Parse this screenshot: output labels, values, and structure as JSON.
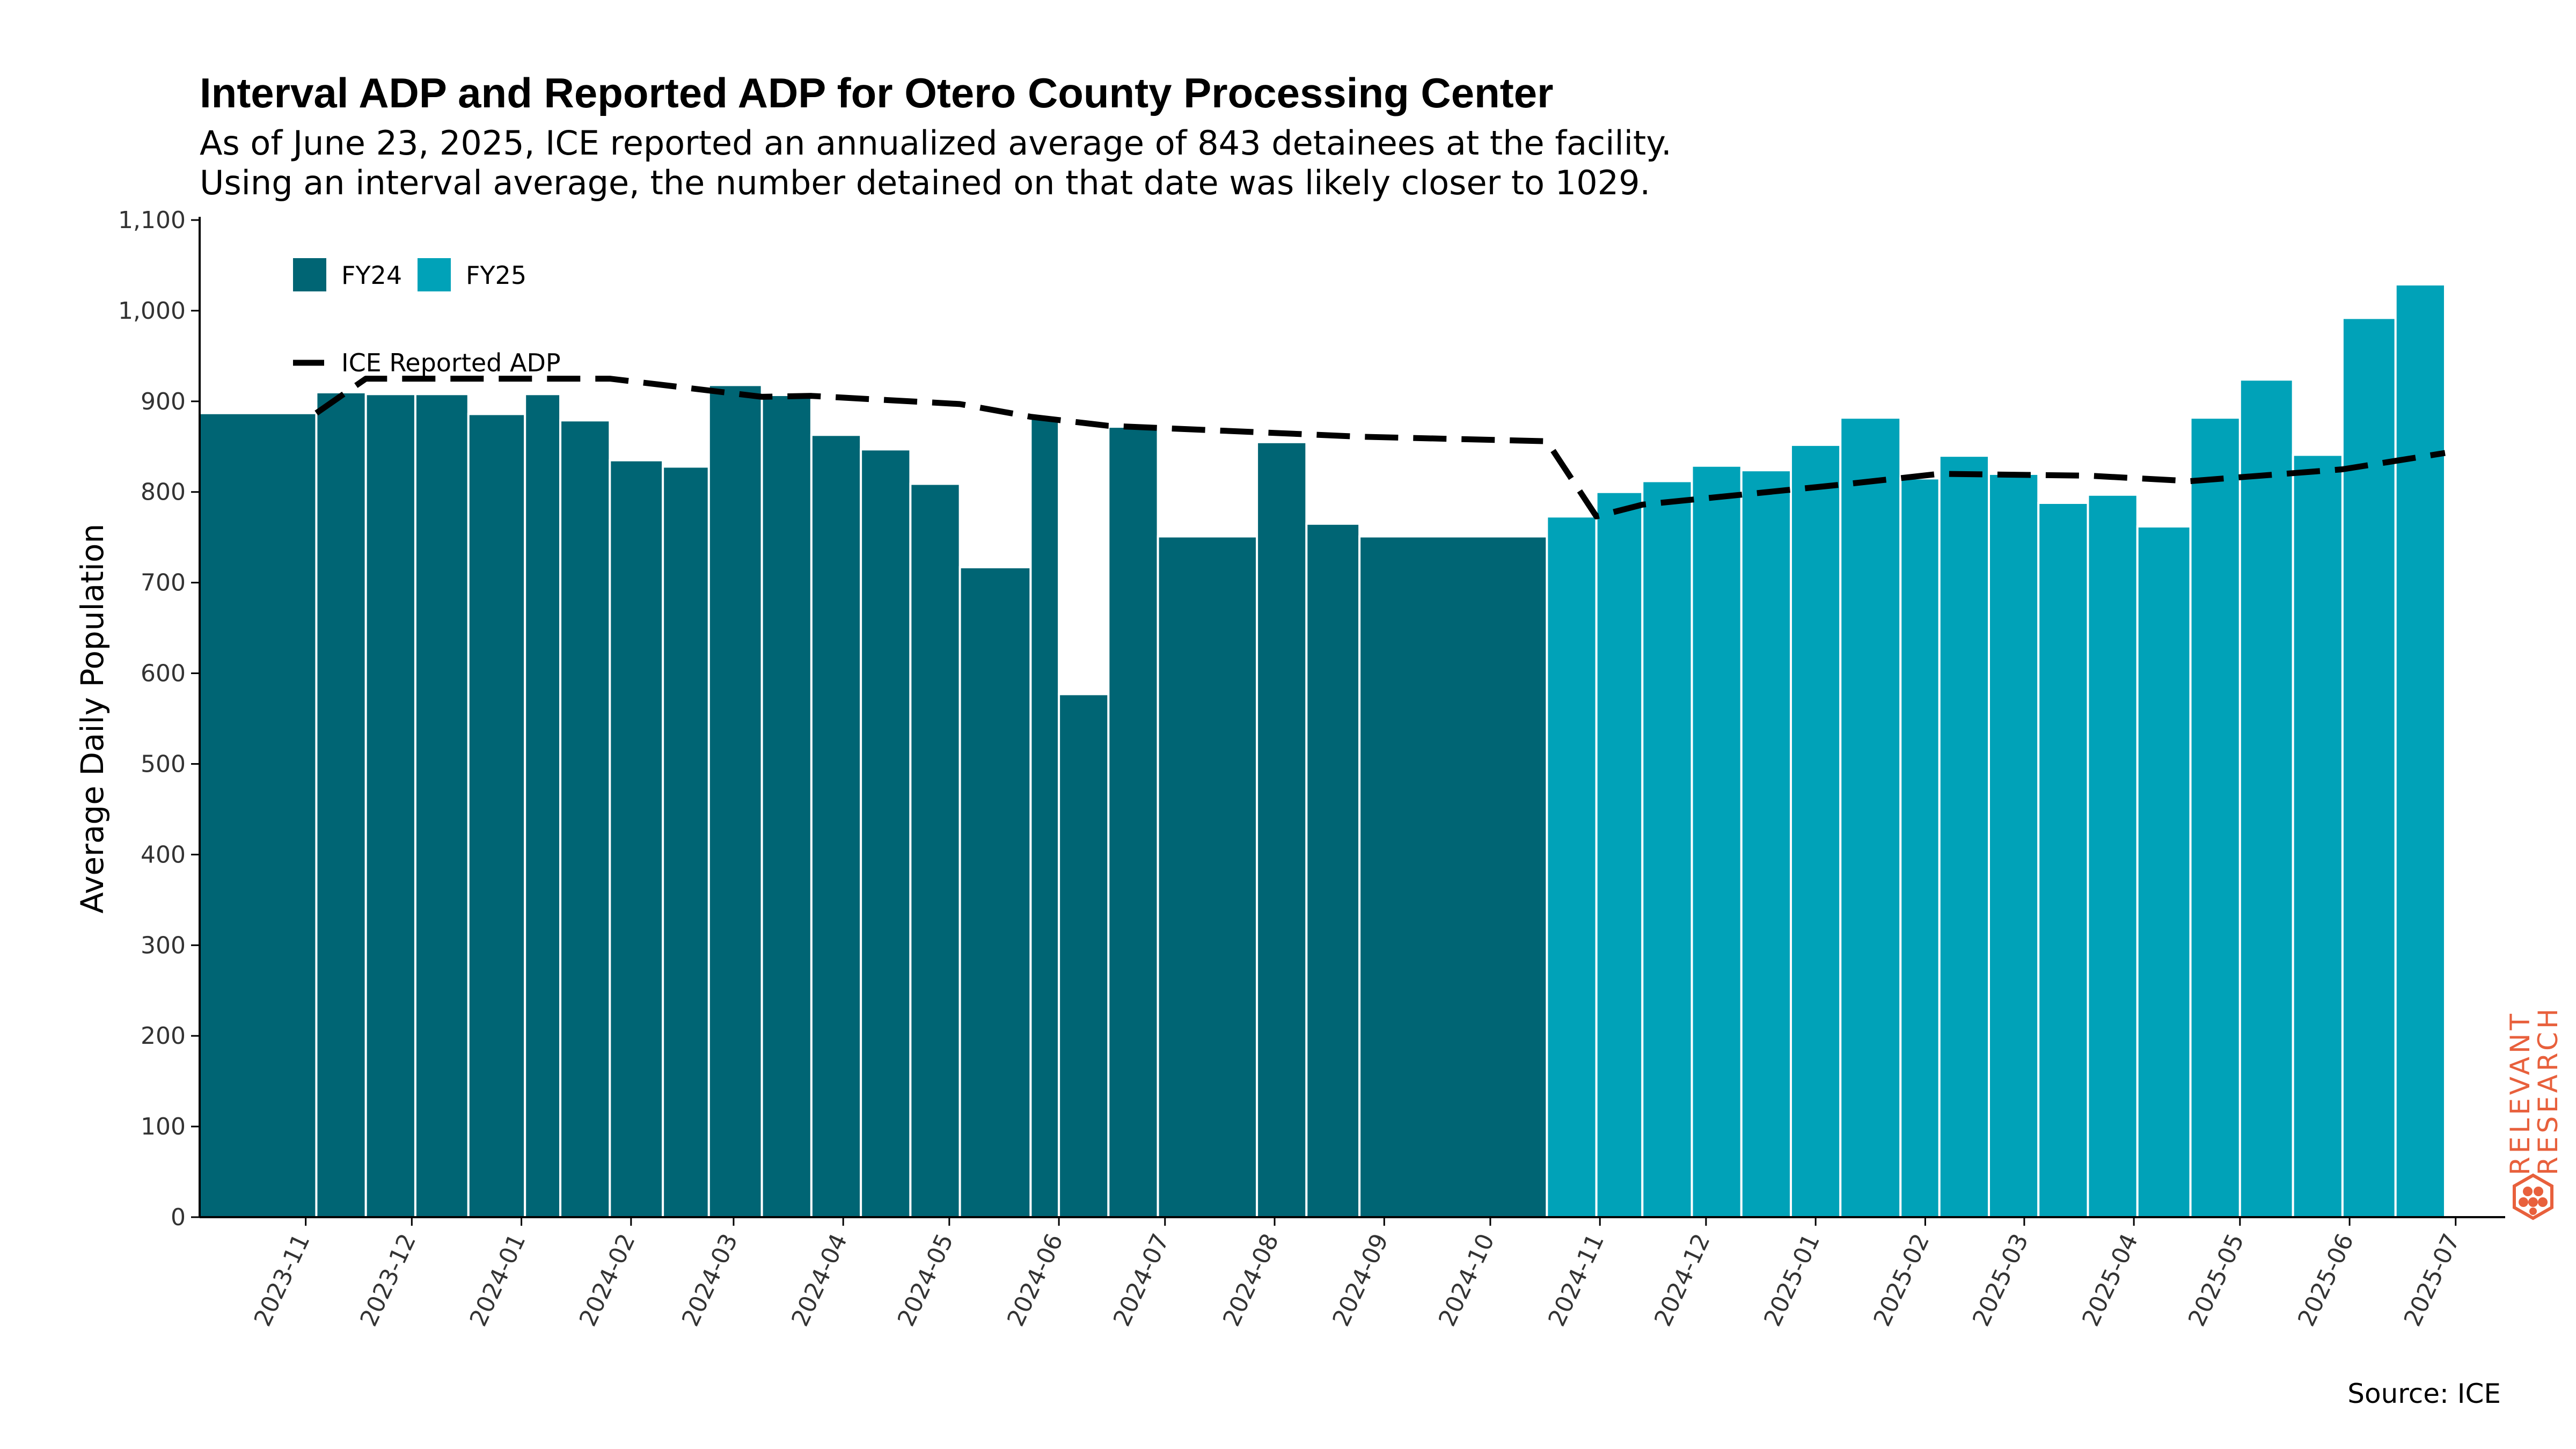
{
  "header": {
    "title": "Interval ADP and Reported ADP for Otero County Processing Center",
    "subtitle_line1": "As of June 23, 2025, ICE reported an annualized average of 843 detainees at the facility.",
    "subtitle_line2": "Using an interval average, the number detained on that date was likely closer to 1029."
  },
  "source": "Source: ICE",
  "logo": {
    "line1": "RELEVANT",
    "line2": "RESEARCH",
    "color": "#e8603c"
  },
  "chart_data": {
    "type": "bar",
    "ylabel": "Average Daily Population",
    "ylim": [
      0,
      1100
    ],
    "yticks": [
      0,
      100,
      200,
      300,
      400,
      500,
      600,
      700,
      800,
      900,
      1000,
      1100
    ],
    "ytick_labels": [
      "0",
      "100",
      "200",
      "300",
      "400",
      "500",
      "600",
      "700",
      "800",
      "900",
      "1,000",
      "1,100"
    ],
    "xlim": [
      "2023-10-02",
      "2025-07-15"
    ],
    "xticks": [
      "2023-11-01",
      "2023-12-01",
      "2024-01-01",
      "2024-02-01",
      "2024-03-01",
      "2024-04-01",
      "2024-05-01",
      "2024-06-01",
      "2024-07-01",
      "2024-08-01",
      "2024-09-01",
      "2024-10-01",
      "2024-11-01",
      "2024-12-01",
      "2025-01-01",
      "2025-02-01",
      "2025-03-01",
      "2025-04-01",
      "2025-05-01",
      "2025-06-01",
      "2025-07-01"
    ],
    "xtick_labels": [
      "2023-11",
      "2023-12",
      "2024-01",
      "2024-02",
      "2024-03",
      "2024-04",
      "2024-05",
      "2024-06",
      "2024-07",
      "2024-08",
      "2024-09",
      "2024-10",
      "2024-11",
      "2024-12",
      "2025-01",
      "2025-02",
      "2025-03",
      "2025-04",
      "2025-05",
      "2025-06",
      "2025-07"
    ],
    "legend": {
      "placement": "top-left",
      "items": [
        {
          "label": "FY24",
          "color": "#006574"
        },
        {
          "label": "FY25",
          "color": "#00a2b8"
        },
        {
          "label": "ICE Reported ADP",
          "color": "#000000"
        }
      ]
    },
    "bar_series": [
      {
        "name": "FY24",
        "color": "#006574",
        "bars": [
          {
            "start": "2023-10-02",
            "end": "2023-11-04",
            "value": 887
          },
          {
            "start": "2023-11-04",
            "end": "2023-11-18",
            "value": 910
          },
          {
            "start": "2023-11-18",
            "end": "2023-12-02",
            "value": 908
          },
          {
            "start": "2023-12-02",
            "end": "2023-12-17",
            "value": 908
          },
          {
            "start": "2023-12-17",
            "end": "2024-01-02",
            "value": 886
          },
          {
            "start": "2024-01-02",
            "end": "2024-01-12",
            "value": 908
          },
          {
            "start": "2024-01-12",
            "end": "2024-01-26",
            "value": 879
          },
          {
            "start": "2024-01-26",
            "end": "2024-02-10",
            "value": 835
          },
          {
            "start": "2024-02-10",
            "end": "2024-02-23",
            "value": 828
          },
          {
            "start": "2024-02-23",
            "end": "2024-03-09",
            "value": 918
          },
          {
            "start": "2024-03-09",
            "end": "2024-03-23",
            "value": 907
          },
          {
            "start": "2024-03-23",
            "end": "2024-04-06",
            "value": 863
          },
          {
            "start": "2024-04-06",
            "end": "2024-04-20",
            "value": 847
          },
          {
            "start": "2024-04-20",
            "end": "2024-05-04",
            "value": 809
          },
          {
            "start": "2024-05-04",
            "end": "2024-05-24",
            "value": 717
          },
          {
            "start": "2024-05-24",
            "end": "2024-06-01",
            "value": 882
          },
          {
            "start": "2024-06-01",
            "end": "2024-06-15",
            "value": 577
          },
          {
            "start": "2024-06-15",
            "end": "2024-06-29",
            "value": 872
          },
          {
            "start": "2024-06-29",
            "end": "2024-07-27",
            "value": 751
          },
          {
            "start": "2024-07-27",
            "end": "2024-08-10",
            "value": 855
          },
          {
            "start": "2024-08-10",
            "end": "2024-08-25",
            "value": 765
          },
          {
            "start": "2024-08-25",
            "end": "2024-10-17",
            "value": 751
          }
        ]
      },
      {
        "name": "FY25",
        "color": "#00a2b8",
        "bars": [
          {
            "start": "2024-10-17",
            "end": "2024-10-31",
            "value": 773
          },
          {
            "start": "2024-10-31",
            "end": "2024-11-13",
            "value": 800
          },
          {
            "start": "2024-11-13",
            "end": "2024-11-27",
            "value": 812
          },
          {
            "start": "2024-11-27",
            "end": "2024-12-11",
            "value": 829
          },
          {
            "start": "2024-12-11",
            "end": "2024-12-25",
            "value": 824
          },
          {
            "start": "2024-12-25",
            "end": "2025-01-08",
            "value": 852
          },
          {
            "start": "2025-01-08",
            "end": "2025-01-25",
            "value": 882
          },
          {
            "start": "2025-01-25",
            "end": "2025-02-05",
            "value": 815
          },
          {
            "start": "2025-02-05",
            "end": "2025-02-19",
            "value": 840
          },
          {
            "start": "2025-02-19",
            "end": "2025-03-05",
            "value": 820
          },
          {
            "start": "2025-03-05",
            "end": "2025-03-19",
            "value": 788
          },
          {
            "start": "2025-03-19",
            "end": "2025-04-02",
            "value": 797
          },
          {
            "start": "2025-04-02",
            "end": "2025-04-17",
            "value": 762
          },
          {
            "start": "2025-04-17",
            "end": "2025-05-01",
            "value": 882
          },
          {
            "start": "2025-05-01",
            "end": "2025-05-16",
            "value": 924
          },
          {
            "start": "2025-05-16",
            "end": "2025-05-30",
            "value": 841
          },
          {
            "start": "2025-05-30",
            "end": "2025-06-14",
            "value": 992
          },
          {
            "start": "2025-06-14",
            "end": "2025-06-28",
            "value": 1029
          }
        ]
      }
    ],
    "line_series": {
      "name": "ICE Reported ADP",
      "style": "dashed",
      "color": "#000000",
      "points": [
        {
          "x": "2023-11-04",
          "y": 887
        },
        {
          "x": "2023-11-18",
          "y": 925
        },
        {
          "x": "2024-01-26",
          "y": 925
        },
        {
          "x": "2024-03-09",
          "y": 905
        },
        {
          "x": "2024-03-23",
          "y": 906
        },
        {
          "x": "2024-05-04",
          "y": 897
        },
        {
          "x": "2024-05-24",
          "y": 883
        },
        {
          "x": "2024-06-15",
          "y": 873
        },
        {
          "x": "2024-07-27",
          "y": 866
        },
        {
          "x": "2024-08-25",
          "y": 861
        },
        {
          "x": "2024-10-17",
          "y": 856
        },
        {
          "x": "2024-10-31",
          "y": 773
        },
        {
          "x": "2024-11-13",
          "y": 786
        },
        {
          "x": "2025-01-08",
          "y": 808
        },
        {
          "x": "2025-02-05",
          "y": 820
        },
        {
          "x": "2025-03-19",
          "y": 818
        },
        {
          "x": "2025-04-17",
          "y": 812
        },
        {
          "x": "2025-05-30",
          "y": 825
        },
        {
          "x": "2025-06-28",
          "y": 843
        }
      ]
    }
  }
}
